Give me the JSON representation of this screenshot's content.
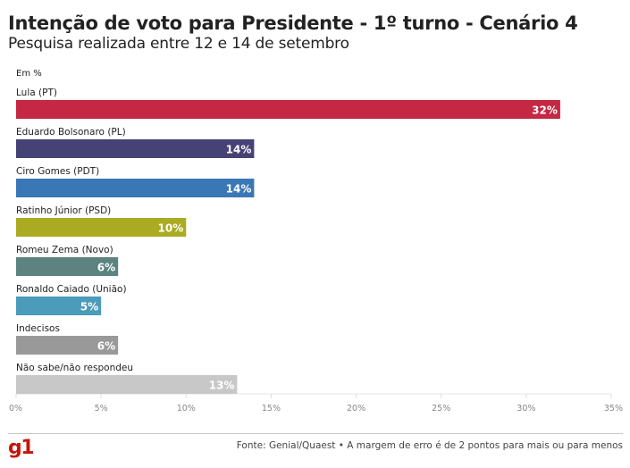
{
  "header": {
    "title": "Intenção de voto para Presidente - 1º turno - Cenário 4",
    "subtitle": "Pesquisa realizada entre 12 e 14 de setembro",
    "unit": "Em %"
  },
  "chart_data": {
    "type": "bar",
    "orientation": "horizontal",
    "title": "Intenção de voto para Presidente - 1º turno - Cenário 4",
    "subtitle": "Pesquisa realizada entre 12 e 14 de setembro",
    "xlabel": "",
    "ylabel": "Em %",
    "xlim": [
      0,
      35
    ],
    "grid": true,
    "categories": [
      "Lula (PT)",
      "Eduardo Bolsonaro (PL)",
      "Ciro Gomes (PDT)",
      "Ratinho Júnior (PSD)",
      "Romeu Zema (Novo)",
      "Ronaldo Caiado (União)",
      "Indecisos",
      "Não sabe/não respondeu"
    ],
    "values": [
      32,
      14,
      14,
      10,
      6,
      5,
      6,
      13
    ],
    "value_labels": [
      "32%",
      "14%",
      "14%",
      "10%",
      "6%",
      "5%",
      "6%",
      "13%"
    ],
    "colors": [
      "#c42842",
      "#474276",
      "#3a77b6",
      "#aaab22",
      "#5c8380",
      "#4b9bbb",
      "#999999",
      "#c8c8c8"
    ],
    "ticks": [
      0,
      5,
      10,
      15,
      20,
      25,
      30,
      35
    ],
    "tick_labels": [
      "0%",
      "5%",
      "10%",
      "15%",
      "20%",
      "25%",
      "30%",
      "35%"
    ]
  },
  "footer": {
    "logo": "g1",
    "source": "Fonte: Genial/Quaest • A margem de erro é de 2 pontos para mais ou para menos"
  }
}
